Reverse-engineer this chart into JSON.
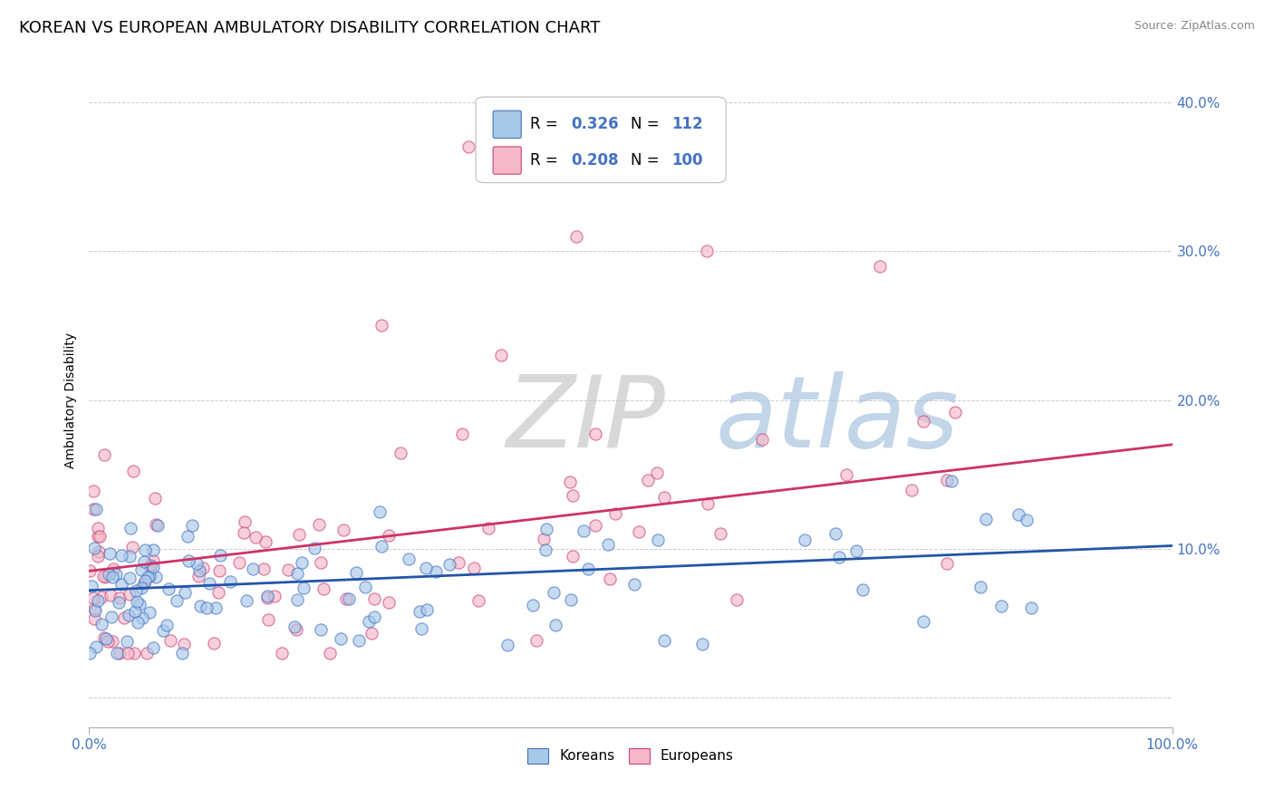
{
  "title": "KOREAN VS EUROPEAN AMBULATORY DISABILITY CORRELATION CHART",
  "source": "Source: ZipAtlas.com",
  "ylabel": "Ambulatory Disability",
  "koreans": {
    "R": 0.326,
    "N": 112,
    "scatter_color": "#a8c8e8",
    "edge_color": "#4472c4",
    "line_color": "#2255aa",
    "label": "Koreans"
  },
  "europeans": {
    "R": 0.208,
    "N": 100,
    "scatter_color": "#f4b8c8",
    "edge_color": "#cc4477",
    "line_color": "#cc3366",
    "label": "Europeans"
  },
  "xlim": [
    0.0,
    100.0
  ],
  "ylim": [
    -2.0,
    42.0
  ],
  "background_color": "#ffffff",
  "grid_color": "#cccccc",
  "tick_color": "#4472c4",
  "title_fontsize": 13,
  "source_fontsize": 9,
  "legend_value_color": "#4472c4"
}
